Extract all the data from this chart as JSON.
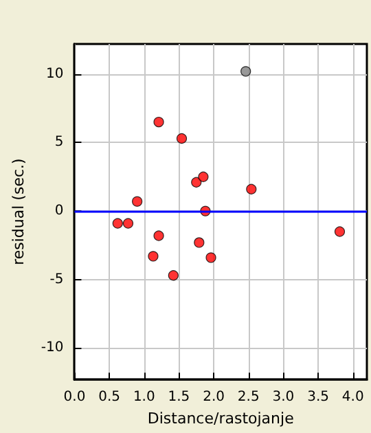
{
  "chart_data": {
    "type": "scatter",
    "xlabel": "Distance/rastojanje",
    "ylabel": "residual (sec.)",
    "xlim": [
      0,
      4.2
    ],
    "xticks": [
      {
        "value": 0,
        "label": "0.0"
      },
      {
        "value": 0.5,
        "label": "0.5"
      },
      {
        "value": 1,
        "label": "1.0"
      },
      {
        "value": 1.5,
        "label": "1.5"
      },
      {
        "value": 2,
        "label": "2.0"
      },
      {
        "value": 2.5,
        "label": "2.5"
      },
      {
        "value": 3,
        "label": "3.0"
      },
      {
        "value": 3.5,
        "label": "3.5"
      },
      {
        "value": 4,
        "label": "4.0"
      }
    ],
    "ylim": [
      -12.3,
      12.2
    ],
    "yticks": [
      -10,
      -5,
      0,
      5,
      10
    ],
    "grid": true,
    "marker": "circle",
    "series": [
      {
        "color": "#ff0000",
        "x": [
          0.62,
          0.77,
          0.9,
          1.13,
          1.21,
          1.21,
          1.42,
          1.54,
          1.75,
          1.85,
          1.79,
          1.88,
          1.96,
          2.54,
          3.81
        ],
        "values": [
          -0.9,
          -0.9,
          0.7,
          -3.3,
          -1.8,
          6.5,
          -4.7,
          5.3,
          2.1,
          2.5,
          -2.3,
          0,
          -3.4,
          1.6,
          -1.5
        ]
      },
      {
        "color": "#808080",
        "x": [
          2.46
        ],
        "values": [
          10.2
        ]
      }
    ],
    "ref_lines": [
      {
        "axis": "y",
        "value": 0,
        "color": "#0000ff",
        "line_style": "solid"
      }
    ]
  }
}
